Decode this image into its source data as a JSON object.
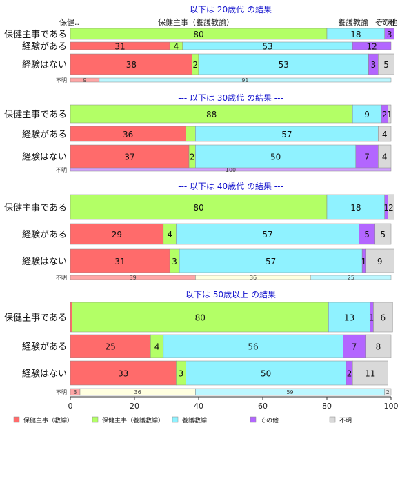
{
  "chart_data": {
    "type": "bar",
    "stacked": true,
    "orientation": "horizontal",
    "xlim": [
      0,
      100
    ],
    "x_ticks": [
      "0",
      "20",
      "40",
      "60",
      "80",
      "100"
    ],
    "top_labels": [
      "保健..",
      "保健主事（養護教諭）",
      "養護教諭",
      "その他",
      "不明"
    ],
    "legend": [
      {
        "label": "保健主事（教諭）",
        "color": "#ff6b6b"
      },
      {
        "label": "保健主事（養護教諭）",
        "color": "#b3ff66"
      },
      {
        "label": "養護教諭",
        "color": "#8ff2ff"
      },
      {
        "label": "その他",
        "color": "#b366ff"
      },
      {
        "label": "不明",
        "color": "#d9d9d9"
      }
    ],
    "panels": [
      {
        "title": "--- 以下は 20歳代 の結果 ---",
        "rows": [
          {
            "category": "保健主事である",
            "values": [
              0,
              80,
              18,
              3,
              0
            ],
            "labels": [
              "",
              "80",
              "18",
              "3",
              ""
            ]
          },
          {
            "category": "経験がある",
            "values": [
              31,
              4,
              53,
              12,
              0
            ],
            "labels": [
              "31",
              "4",
              "53",
              "12",
              ""
            ]
          },
          {
            "category": "経験はない",
            "values": [
              38,
              2,
              53,
              3,
              5
            ],
            "labels": [
              "38",
              "2",
              "53",
              "3",
              "5"
            ]
          }
        ],
        "unknown": {
          "category": "不明",
          "values": [
            9,
            91
          ],
          "labels": [
            "9",
            "91"
          ],
          "colors": [
            "#ff6b6b",
            "#8ff2ff"
          ]
        }
      },
      {
        "title": "--- 以下は 30歳代 の結果 ---",
        "rows": [
          {
            "category": "保健主事である",
            "values": [
              0,
              88,
              9,
              2,
              1
            ],
            "labels": [
              "",
              "88",
              "9",
              "2",
              "1"
            ]
          },
          {
            "category": "経験がある",
            "values": [
              36,
              3,
              57,
              0,
              4
            ],
            "labels": [
              "36",
              "",
              "57",
              "",
              "4"
            ]
          },
          {
            "category": "経験はない",
            "values": [
              37,
              2,
              50,
              7,
              4
            ],
            "labels": [
              "37",
              "2",
              "50",
              "7",
              "4"
            ]
          }
        ],
        "unknown": {
          "category": "不明",
          "values": [
            100
          ],
          "labels": [
            "100"
          ],
          "colors": [
            "#b366ff"
          ]
        }
      },
      {
        "title": "--- 以下は 40歳代 の結果 ---",
        "rows": [
          {
            "category": "保健主事である",
            "values": [
              0,
              80,
              18,
              1,
              2
            ],
            "labels": [
              "",
              "80",
              "18",
              "1",
              "2"
            ]
          },
          {
            "category": "経験がある",
            "values": [
              29,
              4,
              57,
              5,
              5
            ],
            "labels": [
              "29",
              "4",
              "57",
              "5",
              "5"
            ]
          },
          {
            "category": "経験はない",
            "values": [
              31,
              3,
              57,
              1,
              9
            ],
            "labels": [
              "31",
              "3",
              "57",
              "1",
              "9"
            ]
          }
        ],
        "unknown": {
          "category": "不明",
          "values": [
            39,
            36,
            25
          ],
          "labels": [
            "39",
            "36",
            "25"
          ],
          "colors": [
            "#ff6b6b",
            "#ffffcc",
            "#8ff2ff"
          ]
        }
      },
      {
        "title": "--- 以下は 50歳以上 の結果 ---",
        "rows": [
          {
            "category": "保健主事である",
            "values": [
              0.5,
              80,
              13,
              1,
              6
            ],
            "labels": [
              "",
              "80",
              "13",
              "1",
              "6"
            ]
          },
          {
            "category": "経験がある",
            "values": [
              25,
              4,
              56,
              7,
              8
            ],
            "labels": [
              "25",
              "4",
              "56",
              "7",
              "8"
            ]
          },
          {
            "category": "経験はない",
            "values": [
              33,
              3,
              50,
              2,
              11
            ],
            "labels": [
              "33",
              "3",
              "50",
              "2",
              "11"
            ]
          }
        ],
        "unknown": {
          "category": "不明",
          "values": [
            3,
            36,
            59,
            2
          ],
          "labels": [
            "3",
            "36",
            "59",
            "2"
          ],
          "colors": [
            "#ff6b6b",
            "#ffffcc",
            "#8ff2ff",
            "#d9d9d9"
          ]
        }
      }
    ]
  }
}
